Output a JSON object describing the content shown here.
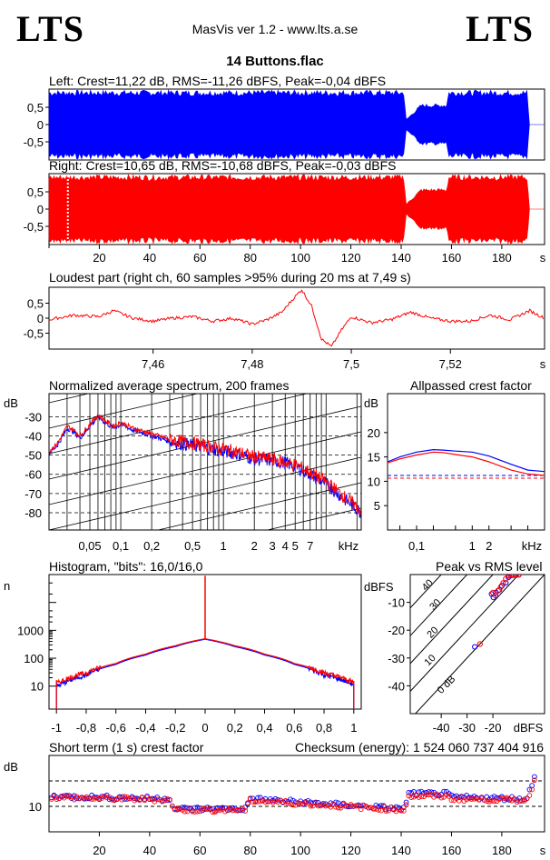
{
  "header": {
    "logo_left": "LTS",
    "logo_right": "LTS",
    "app_title": "MasVis ver 1.2 - www.lts.a.se",
    "file_name": "14 Buttons.flac"
  },
  "colors": {
    "left": "#0000ff",
    "right": "#ff0000",
    "grid": "#000000",
    "background": "#ffffff"
  },
  "chart_data": [
    {
      "id": "left-waveform",
      "type": "area",
      "title": "Left: Crest=11,22 dB, RMS=-11,26 dBFS, Peak=-0,04 dBFS",
      "xlabel": "s",
      "yticks": [
        "0,5",
        "0",
        "-0,5"
      ],
      "xlim": [
        0,
        197
      ],
      "ylim": [
        -1,
        1
      ],
      "series": [
        {
          "time_s": [
            0,
            4,
            141,
            142,
            148,
            158,
            159,
            190,
            191,
            197
          ],
          "envelope": [
            1.0,
            1.0,
            1.0,
            0.15,
            0.6,
            0.6,
            1.0,
            1.0,
            0.0,
            0.0
          ]
        }
      ]
    },
    {
      "id": "right-waveform",
      "type": "area",
      "title": "Right: Crest=10,65 dB, RMS=-10,68 dBFS, Peak=-0,03 dBFS",
      "xlabel": "s",
      "xticks": [
        20,
        40,
        60,
        80,
        100,
        120,
        140,
        160,
        180
      ],
      "yticks": [
        "0,5",
        "0",
        "-0,5"
      ],
      "xlim": [
        0,
        197
      ],
      "ylim": [
        -1,
        1
      ],
      "marker_s": 7.49,
      "series": [
        {
          "time_s": [
            0,
            4,
            141,
            142,
            148,
            158,
            159,
            190,
            191,
            197
          ],
          "envelope": [
            1.0,
            1.0,
            1.0,
            0.15,
            0.6,
            0.6,
            1.0,
            1.0,
            0.0,
            0.0
          ]
        }
      ]
    },
    {
      "id": "loudest-part",
      "type": "line",
      "title": "Loudest part (right ch, 60 samples >95% during 20 ms at 7,49 s)",
      "xlabel": "s",
      "xticks": [
        "7,46",
        "7,48",
        "7,5",
        "7,52"
      ],
      "xtick_values": [
        7.46,
        7.48,
        7.5,
        7.52
      ],
      "yticks": [
        "0,5",
        "0",
        "-0,5"
      ],
      "xlim": [
        7.439,
        7.539
      ],
      "ylim": [
        -1,
        1
      ],
      "series": [
        {
          "x": [
            7.439,
            7.444,
            7.449,
            7.452,
            7.456,
            7.46,
            7.464,
            7.468,
            7.472,
            7.476,
            7.48,
            7.483,
            7.486,
            7.488,
            7.49,
            7.492,
            7.494,
            7.496,
            7.498,
            7.5,
            7.504,
            7.508,
            7.512,
            7.516,
            7.52,
            7.524,
            7.528,
            7.532,
            7.536,
            7.539
          ],
          "y": [
            -0.05,
            0.1,
            0.05,
            0.25,
            0.0,
            -0.1,
            0.0,
            0.05,
            -0.1,
            0.0,
            -0.2,
            -0.05,
            0.2,
            0.6,
            0.95,
            0.4,
            -0.7,
            -0.95,
            -0.4,
            0.05,
            -0.15,
            -0.05,
            0.2,
            0.0,
            -0.1,
            -0.1,
            0.1,
            -0.05,
            0.25,
            0.0
          ]
        }
      ]
    },
    {
      "id": "spectrum",
      "type": "line",
      "title": "Normalized average spectrum, 200 frames",
      "ylabel": "dB",
      "xlabel": "kHz",
      "xticks": [
        "0,05",
        "0,1",
        "0,2",
        "0,5",
        "1",
        "2",
        "3",
        "4",
        "5",
        "7"
      ],
      "xtick_values": [
        0.05,
        0.1,
        0.2,
        0.5,
        1,
        2,
        3,
        4,
        5,
        7
      ],
      "yticks": [
        "-30",
        "-40",
        "-50",
        "-60",
        "-70",
        "-80"
      ],
      "ytick_values": [
        -30,
        -40,
        -50,
        -60,
        -70,
        -80
      ],
      "xlim": [
        0.02,
        22
      ],
      "ylim": [
        -89,
        -18
      ],
      "series": [
        {
          "color": "blue",
          "x": [
            0.02,
            0.024,
            0.03,
            0.035,
            0.04,
            0.05,
            0.06,
            0.07,
            0.085,
            0.1,
            0.13,
            0.2,
            0.3,
            0.5,
            0.8,
            1,
            1.5,
            2,
            3,
            4,
            5,
            6,
            8,
            10,
            13,
            16,
            20,
            22
          ],
          "y": [
            -49,
            -45,
            -36,
            -38,
            -41,
            -35,
            -30,
            -33,
            -36,
            -34,
            -37,
            -40,
            -43,
            -45,
            -47,
            -48,
            -50,
            -52,
            -53,
            -54,
            -56,
            -58,
            -62,
            -65,
            -70,
            -74,
            -78,
            -80
          ]
        },
        {
          "color": "red",
          "x": [
            0.02,
            0.024,
            0.03,
            0.035,
            0.04,
            0.05,
            0.06,
            0.07,
            0.085,
            0.1,
            0.13,
            0.2,
            0.3,
            0.5,
            0.8,
            1,
            1.5,
            2,
            3,
            4,
            5,
            6,
            8,
            10,
            13,
            16,
            20,
            22
          ],
          "y": [
            -48,
            -44,
            -35,
            -37,
            -40,
            -34,
            -29,
            -32,
            -35,
            -33,
            -36,
            -39,
            -42,
            -44,
            -46,
            -47,
            -49,
            -51,
            -52,
            -54,
            -55,
            -57,
            -61,
            -64,
            -69,
            -73,
            -77,
            -79
          ]
        }
      ]
    },
    {
      "id": "allpassed-crest",
      "type": "line",
      "title": "Allpassed crest factor",
      "ylabel": "dB",
      "xlabel": "kHz",
      "xticks": [
        "0,1",
        "1",
        "2"
      ],
      "xtick_values": [
        0.1,
        1,
        2
      ],
      "yticks": [
        "20",
        "15",
        "10",
        "5"
      ],
      "ytick_values": [
        20,
        15,
        10,
        5
      ],
      "xlim": [
        0.03,
        20
      ],
      "ylim": [
        0,
        28
      ],
      "reference_lines": [
        11.2,
        10.65
      ],
      "series": [
        {
          "color": "blue",
          "x": [
            0.03,
            0.05,
            0.1,
            0.2,
            0.3,
            0.5,
            1,
            2,
            5,
            10,
            20
          ],
          "y": [
            14,
            15,
            16,
            16.5,
            16.4,
            16.2,
            16,
            15.2,
            13.5,
            12.3,
            12.0
          ]
        },
        {
          "color": "red",
          "x": [
            0.03,
            0.05,
            0.1,
            0.2,
            0.3,
            0.5,
            1,
            2,
            5,
            10,
            20
          ],
          "y": [
            13.8,
            14.6,
            15.4,
            16,
            15.9,
            15.5,
            15,
            14,
            12.3,
            11.5,
            11.2
          ]
        }
      ]
    },
    {
      "id": "histogram",
      "type": "line",
      "title": "Histogram, \"bits\": 16,0/16,0",
      "ylabel": "n",
      "xticks": [
        "-1",
        "-0,8",
        "-0,6",
        "-0,4",
        "-0,2",
        "0",
        "0,2",
        "0,4",
        "0,6",
        "0,8",
        "1"
      ],
      "xtick_values": [
        -1,
        -0.8,
        -0.6,
        -0.4,
        -0.2,
        0,
        0.2,
        0.4,
        0.6,
        0.8,
        1
      ],
      "yticks": [
        "1000",
        "100",
        "10"
      ],
      "ytick_values": [
        1000,
        100,
        10
      ],
      "yscale": "log",
      "xlim": [
        -1.05,
        1.05
      ],
      "ylim": [
        1.5,
        100000
      ],
      "series": [
        {
          "color": "blue",
          "x": [
            -1,
            -0.99,
            -0.8,
            -0.6,
            -0.4,
            -0.2,
            0,
            0.2,
            0.4,
            0.6,
            0.8,
            0.99,
            1
          ],
          "y": [
            12,
            10,
            25,
            60,
            130,
            260,
            480,
            260,
            130,
            60,
            25,
            12,
            12
          ]
        },
        {
          "color": "red",
          "x": [
            -1,
            -0.99,
            -0.8,
            -0.6,
            -0.4,
            -0.2,
            0,
            0.2,
            0.4,
            0.6,
            0.8,
            0.99,
            1
          ],
          "y": [
            14,
            13,
            30,
            65,
            140,
            280,
            500,
            280,
            140,
            65,
            30,
            14,
            14
          ]
        }
      ],
      "zero_spike": 90000
    },
    {
      "id": "peak-vs-rms",
      "type": "scatter",
      "title": "Peak vs RMS level",
      "ylabel": "dBFS",
      "xlabel": "dBFS",
      "xticks": [
        "-40",
        "-30",
        "-20"
      ],
      "xtick_values": [
        -40,
        -30,
        -20
      ],
      "yticks": [
        "-10",
        "-20",
        "-30",
        "-40"
      ],
      "ytick_values": [
        -10,
        -20,
        -30,
        -40
      ],
      "xlim": [
        -52,
        0
      ],
      "ylim": [
        -50,
        0
      ],
      "diagonal_labels": [
        "40",
        "30",
        "20",
        "10",
        "0 dB"
      ],
      "diagonal_offsets": [
        40,
        30,
        20,
        10,
        0
      ],
      "series": [
        {
          "color": "blue",
          "x": [
            -20.5,
            -19.8,
            -18.9,
            -17.5,
            -16.5,
            -15,
            -14,
            -13,
            -12,
            -11,
            -10,
            -27
          ],
          "y": [
            -7,
            -8.2,
            -6.5,
            -5.5,
            -4,
            -3,
            -1,
            -0.4,
            -0.2,
            -0.2,
            -0.1,
            -26
          ]
        },
        {
          "color": "red",
          "x": [
            -20,
            -19,
            -18,
            -17,
            -16,
            -15,
            -14,
            -13,
            -12,
            -11,
            -10,
            -25
          ],
          "y": [
            -6.5,
            -7.5,
            -5.8,
            -4.5,
            -3,
            -1.5,
            -0.5,
            -0.2,
            -0.1,
            -0.1,
            -0.05,
            -25
          ]
        }
      ]
    },
    {
      "id": "short-term-crest",
      "type": "scatter",
      "title": "Short term (1 s) crest factor",
      "annotation": "Checksum (energy):  1 524 060 737 404 916",
      "ylabel": "dB",
      "xlabel": "s",
      "xticks": [
        20,
        40,
        60,
        80,
        100,
        120,
        140,
        160,
        180
      ],
      "yticks": [
        "10"
      ],
      "ytick_values": [
        10
      ],
      "xlim": [
        0,
        197
      ],
      "ylim": [
        5,
        20
      ],
      "reference_lines": [
        10,
        15
      ],
      "series": [
        {
          "color": "blue",
          "profile_x": [
            0,
            48,
            50,
            78,
            80,
            141,
            143,
            158,
            160,
            190,
            193
          ],
          "profile_y": [
            12,
            11.5,
            9.5,
            9.5,
            11.5,
            9.5,
            12.5,
            12.5,
            11.8,
            11.5,
            16
          ]
        },
        {
          "color": "red",
          "profile_x": [
            0,
            48,
            50,
            78,
            80,
            141,
            143,
            158,
            160,
            190,
            193
          ],
          "profile_y": [
            11.8,
            11.3,
            9.3,
            9.3,
            11.2,
            9.3,
            12,
            12,
            11.5,
            11.2,
            15
          ]
        }
      ]
    }
  ]
}
